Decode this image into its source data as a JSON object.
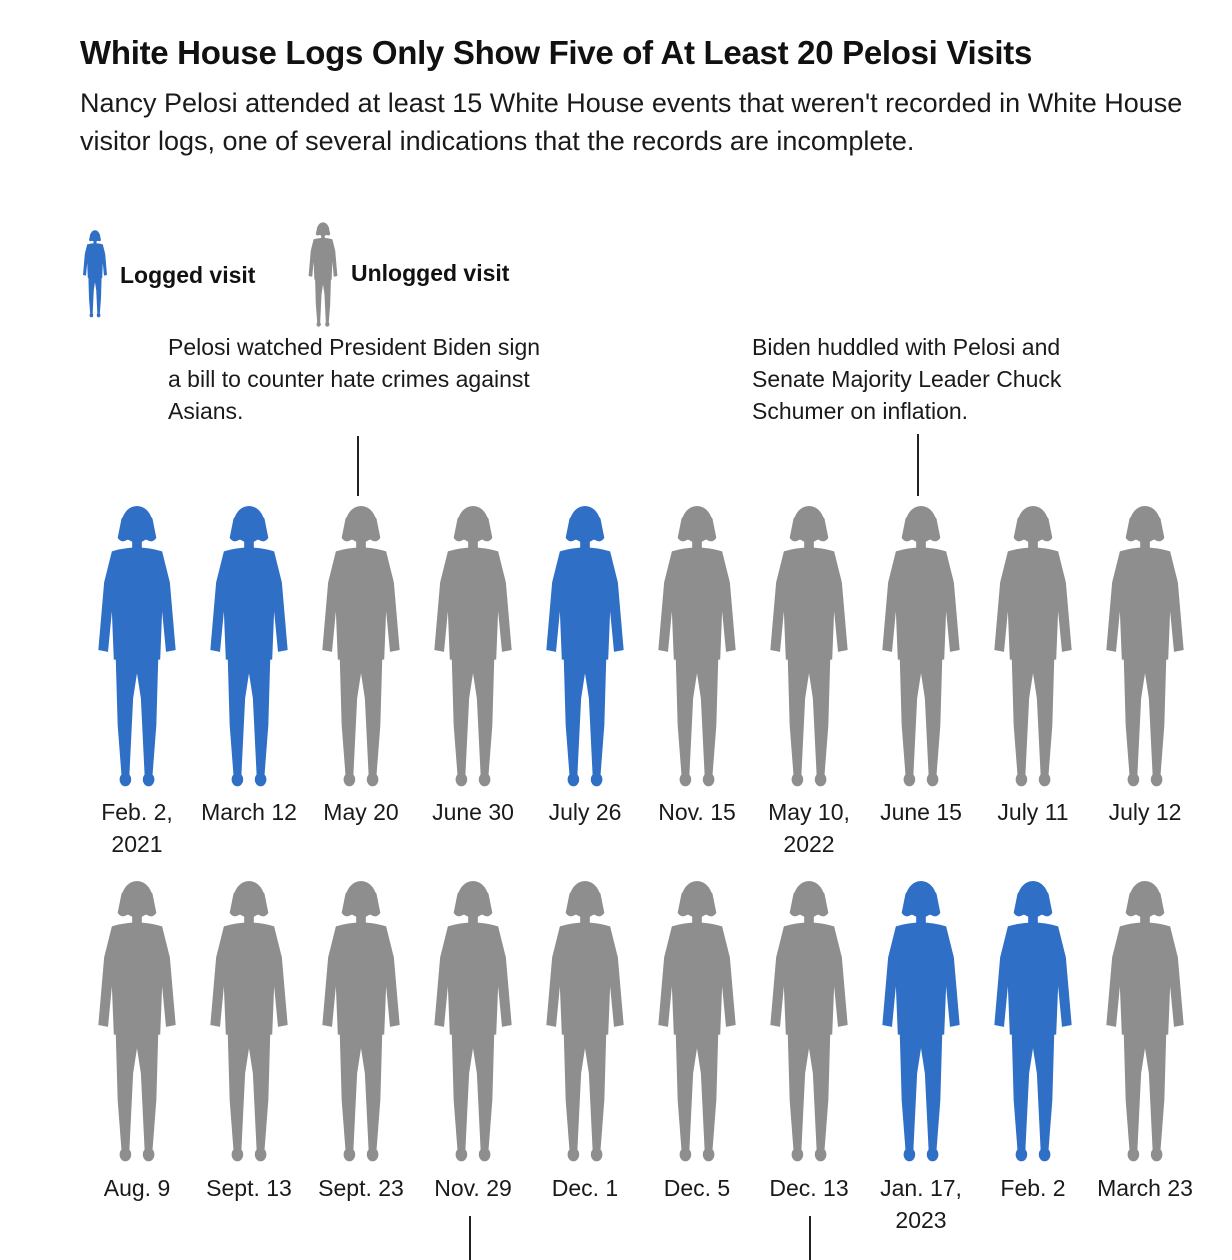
{
  "title": "White House Logs Only Show Five of At Least 20 Pelosi Visits",
  "subtitle": "Nancy Pelosi attended at least 15 White House events that weren't recorded in White House visitor logs, one of several indications that the records are incomplete.",
  "legend": {
    "logged": {
      "label": "Logged visit",
      "color": "#2f6fc6"
    },
    "unlogged": {
      "label": "Unlogged visit",
      "color": "#8e8e8e"
    }
  },
  "annotations": [
    {
      "text": "Pelosi watched President Biden sign a bill to counter hate crimes against Asians.",
      "visit": "May 20"
    },
    {
      "text": "Biden huddled with Pelosi and Senate Majority Leader Chuck Schumer on inflation.",
      "visit": "June 15"
    }
  ],
  "chart_data": {
    "type": "table",
    "visits": [
      {
        "date": "Feb. 2,",
        "year": "2021",
        "status": "logged"
      },
      {
        "date": "March 12",
        "year": "",
        "status": "logged"
      },
      {
        "date": "May 20",
        "year": "",
        "status": "unlogged"
      },
      {
        "date": "June 30",
        "year": "",
        "status": "unlogged"
      },
      {
        "date": "July 26",
        "year": "",
        "status": "logged"
      },
      {
        "date": "Nov. 15",
        "year": "",
        "status": "unlogged"
      },
      {
        "date": "May 10,",
        "year": "2022",
        "status": "unlogged"
      },
      {
        "date": "June 15",
        "year": "",
        "status": "unlogged"
      },
      {
        "date": "July 11",
        "year": "",
        "status": "unlogged"
      },
      {
        "date": "July 12",
        "year": "",
        "status": "unlogged"
      },
      {
        "date": "Aug. 9",
        "year": "",
        "status": "unlogged"
      },
      {
        "date": "Sept. 13",
        "year": "",
        "status": "unlogged"
      },
      {
        "date": "Sept. 23",
        "year": "",
        "status": "unlogged"
      },
      {
        "date": "Nov. 29",
        "year": "",
        "status": "unlogged"
      },
      {
        "date": "Dec. 1",
        "year": "",
        "status": "unlogged"
      },
      {
        "date": "Dec. 5",
        "year": "",
        "status": "unlogged"
      },
      {
        "date": "Dec. 13",
        "year": "",
        "status": "unlogged"
      },
      {
        "date": "Jan. 17,",
        "year": "2023",
        "status": "logged"
      },
      {
        "date": "Feb. 2",
        "year": "",
        "status": "logged"
      },
      {
        "date": "March 23",
        "year": "",
        "status": "unlogged"
      }
    ]
  }
}
